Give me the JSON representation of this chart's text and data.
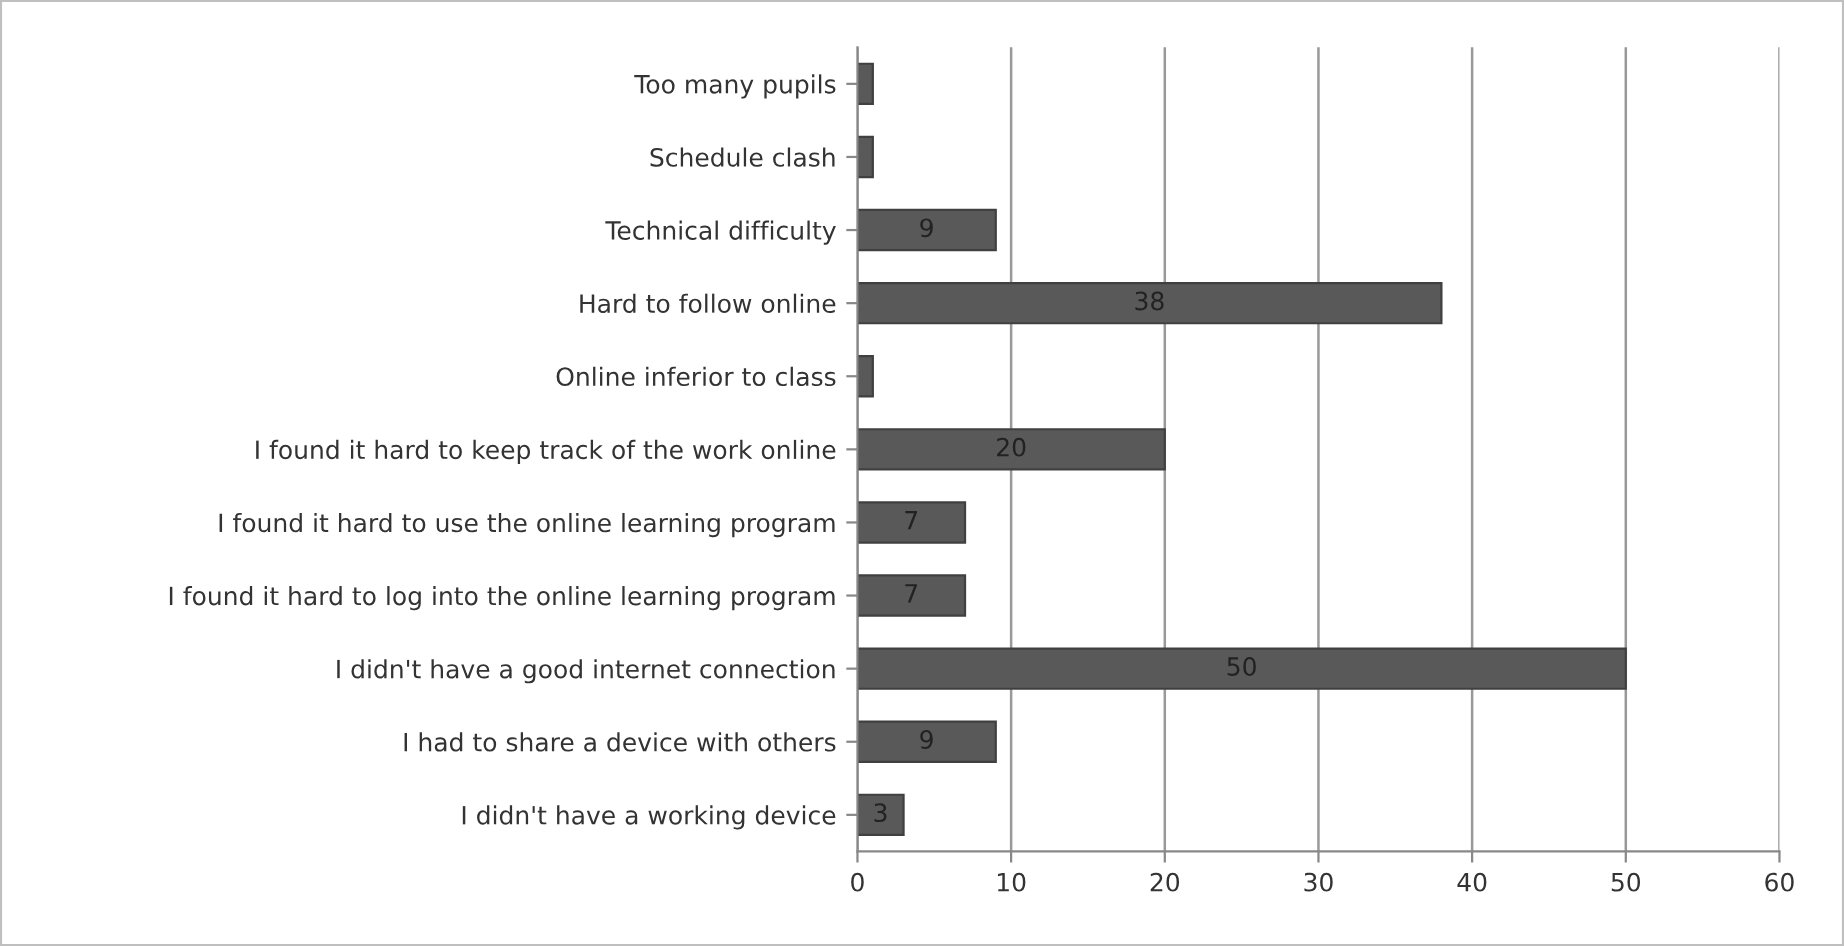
{
  "chart_data": {
    "type": "bar",
    "orientation": "horizontal",
    "categories": [
      "Too many pupils",
      "Schedule clash",
      "Technical difficulty",
      "Hard to follow online",
      "Online inferior to class",
      "I found it hard to keep track of the work online",
      "I found it hard to use the online learning program",
      "I found it hard to log into the online learning program",
      "I didn't have a good internet connection",
      "I had to share a device with others",
      "I didn't have a working device"
    ],
    "values": [
      1,
      1,
      9,
      38,
      1,
      20,
      7,
      7,
      50,
      9,
      3
    ],
    "value_labels": [
      null,
      null,
      "9",
      "38",
      null,
      "20",
      "7",
      "7",
      "50",
      "9",
      "3"
    ],
    "color": "#595959",
    "xlim": [
      0,
      60
    ],
    "xticks": [
      0,
      10,
      20,
      30,
      40,
      50,
      60
    ],
    "grid": "x",
    "legend": false
  }
}
